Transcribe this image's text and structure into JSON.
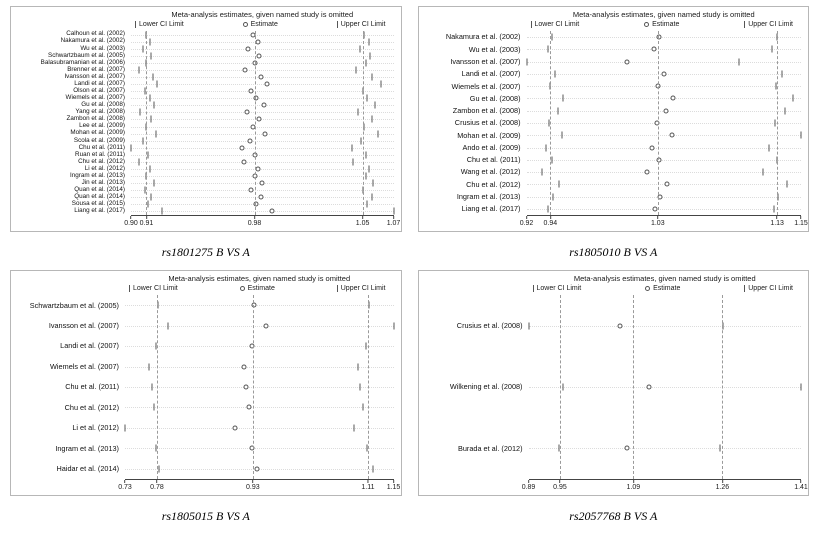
{
  "colors": {
    "marker": "#555555",
    "dashed_line": "#9a9a9a",
    "axis": "#444444",
    "row_dotted": "#dcdcdc",
    "border": "#b7b7b7",
    "text": "#1a1a1a"
  },
  "chart_data": [
    {
      "type": "scatter",
      "variant": "leave-one-out-sensitivity-forest",
      "caption": "rs1801275 B VS A",
      "title": "Meta-analysis estimates, given named study is omitted",
      "legend": [
        "Lower CI Limit",
        "Estimate",
        "Upper CI Limit"
      ],
      "xlim": [
        0.9,
        1.07
      ],
      "ticks": [
        0.9,
        0.91,
        0.98,
        1.05,
        1.07
      ],
      "tick_labels": [
        "0.90",
        "0.91",
        "0.98",
        "1.05",
        "1.07"
      ],
      "pooled_lines": [
        0.91,
        0.98,
        1.05
      ],
      "studies": [
        {
          "name": "Calhoun et al. (2002)",
          "lower": 0.91,
          "estimate": 0.979,
          "upper": 1.051
        },
        {
          "name": "Nakamura et al. (2002)",
          "lower": 0.912,
          "estimate": 0.982,
          "upper": 1.054
        },
        {
          "name": "Wu et al. (2003)",
          "lower": 0.908,
          "estimate": 0.976,
          "upper": 1.048
        },
        {
          "name": "Schwartzbaum et al. (2005)",
          "lower": 0.913,
          "estimate": 0.983,
          "upper": 1.055
        },
        {
          "name": "Balasubramanian et al. (2006)",
          "lower": 0.91,
          "estimate": 0.98,
          "upper": 1.052
        },
        {
          "name": "Brenner et al. (2007)",
          "lower": 0.905,
          "estimate": 0.974,
          "upper": 1.046
        },
        {
          "name": "Ivansson et al. (2007)",
          "lower": 0.914,
          "estimate": 0.984,
          "upper": 1.056
        },
        {
          "name": "Landi et al. (2007)",
          "lower": 0.917,
          "estimate": 0.988,
          "upper": 1.062
        },
        {
          "name": "Olson et al. (2007)",
          "lower": 0.909,
          "estimate": 0.978,
          "upper": 1.05
        },
        {
          "name": "Wiemels et al. (2007)",
          "lower": 0.912,
          "estimate": 0.981,
          "upper": 1.053
        },
        {
          "name": "Gu et al. (2008)",
          "lower": 0.915,
          "estimate": 0.986,
          "upper": 1.058
        },
        {
          "name": "Yang et al. (2008)",
          "lower": 0.906,
          "estimate": 0.975,
          "upper": 1.047
        },
        {
          "name": "Zambon et al. (2008)",
          "lower": 0.913,
          "estimate": 0.983,
          "upper": 1.056
        },
        {
          "name": "Lee et al. (2009)",
          "lower": 0.91,
          "estimate": 0.979,
          "upper": 1.051
        },
        {
          "name": "Mohan et al. (2009)",
          "lower": 0.916,
          "estimate": 0.987,
          "upper": 1.06
        },
        {
          "name": "Scola et al. (2009)",
          "lower": 0.908,
          "estimate": 0.977,
          "upper": 1.049
        },
        {
          "name": "Chu et al. (2011)",
          "lower": 0.9,
          "estimate": 0.972,
          "upper": 1.043
        },
        {
          "name": "Ruan et al. (2011)",
          "lower": 0.911,
          "estimate": 0.98,
          "upper": 1.052
        },
        {
          "name": "Chu et al. (2012)",
          "lower": 0.905,
          "estimate": 0.973,
          "upper": 1.044
        },
        {
          "name": "Li et al. (2012)",
          "lower": 0.912,
          "estimate": 0.982,
          "upper": 1.054
        },
        {
          "name": "Ingram et al. (2013)",
          "lower": 0.91,
          "estimate": 0.98,
          "upper": 1.052
        },
        {
          "name": "Jin et al. (2013)",
          "lower": 0.915,
          "estimate": 0.985,
          "upper": 1.057
        },
        {
          "name": "Quan et al. (2014)",
          "lower": 0.909,
          "estimate": 0.978,
          "upper": 1.05
        },
        {
          "name": "Quan et al. (2014)",
          "lower": 0.913,
          "estimate": 0.984,
          "upper": 1.056
        },
        {
          "name": "Sousa et al. (2015)",
          "lower": 0.911,
          "estimate": 0.981,
          "upper": 1.053
        },
        {
          "name": "Liang  et al. (2017)",
          "lower": 0.92,
          "estimate": 0.991,
          "upper": 1.07
        }
      ]
    },
    {
      "type": "scatter",
      "variant": "leave-one-out-sensitivity-forest",
      "caption": "rs1805010 B VS A",
      "title": "Meta-analysis estimates, given named study is omitted",
      "legend": [
        "Lower CI Limit",
        "Estimate",
        "Upper CI Limit"
      ],
      "xlim": [
        0.92,
        1.15
      ],
      "ticks": [
        0.92,
        0.94,
        1.03,
        1.13,
        1.15
      ],
      "tick_labels": [
        "0.92",
        "0.94",
        "1.03",
        "1.13",
        "1.15"
      ],
      "pooled_lines": [
        0.94,
        1.03,
        1.13
      ],
      "studies": [
        {
          "name": "Nakamura et al. (2002)",
          "lower": 0.941,
          "estimate": 1.031,
          "upper": 1.13
        },
        {
          "name": "Wu et al. (2003)",
          "lower": 0.938,
          "estimate": 1.027,
          "upper": 1.126
        },
        {
          "name": "Ivansson et al. (2007)",
          "lower": 0.92,
          "estimate": 1.004,
          "upper": 1.098
        },
        {
          "name": "Landi et al. (2007)",
          "lower": 0.944,
          "estimate": 1.035,
          "upper": 1.134
        },
        {
          "name": "Wiemels  et al. (2007)",
          "lower": 0.94,
          "estimate": 1.03,
          "upper": 1.129
        },
        {
          "name": "Gu et al. (2008)",
          "lower": 0.951,
          "estimate": 1.043,
          "upper": 1.143
        },
        {
          "name": "Zambon  et al. (2008)",
          "lower": 0.946,
          "estimate": 1.037,
          "upper": 1.137
        },
        {
          "name": "Crusius  et al. (2008)",
          "lower": 0.939,
          "estimate": 1.029,
          "upper": 1.128
        },
        {
          "name": "Mohan  et al. (2009)",
          "lower": 0.95,
          "estimate": 1.042,
          "upper": 1.15
        },
        {
          "name": "Ando et al. (2009)",
          "lower": 0.936,
          "estimate": 1.025,
          "upper": 1.123
        },
        {
          "name": "Chu et al. (2011)",
          "lower": 0.941,
          "estimate": 1.031,
          "upper": 1.13
        },
        {
          "name": "Wang et al. (2012)",
          "lower": 0.933,
          "estimate": 1.021,
          "upper": 1.118
        },
        {
          "name": "Chu et al. (2012)",
          "lower": 0.947,
          "estimate": 1.038,
          "upper": 1.138
        },
        {
          "name": "Ingram et al. (2013)",
          "lower": 0.942,
          "estimate": 1.032,
          "upper": 1.131
        },
        {
          "name": "Liang  et al. (2017)",
          "lower": 0.938,
          "estimate": 1.028,
          "upper": 1.127
        }
      ]
    },
    {
      "type": "scatter",
      "variant": "leave-one-out-sensitivity-forest",
      "caption": "rs1805015 B VS A",
      "title": "Meta-analysis estimates, given named study is omitted",
      "legend": [
        "Lower CI Limit",
        "Estimate",
        "Upper CI Limit"
      ],
      "xlim": [
        0.73,
        1.15
      ],
      "ticks": [
        0.73,
        0.78,
        0.93,
        1.11,
        1.15
      ],
      "tick_labels": [
        "0.73",
        "0.78",
        "0.93",
        "1.11",
        "1.15"
      ],
      "pooled_lines": [
        0.78,
        0.93,
        1.11
      ],
      "studies": [
        {
          "name": "Schwartzbaum et al. (2005)",
          "lower": 0.781,
          "estimate": 0.932,
          "upper": 1.112
        },
        {
          "name": "Ivansson et al. (2007)",
          "lower": 0.798,
          "estimate": 0.95,
          "upper": 1.15
        },
        {
          "name": "Landi et al. (2007)",
          "lower": 0.778,
          "estimate": 0.928,
          "upper": 1.107
        },
        {
          "name": "Wiemels et al. (2007)",
          "lower": 0.768,
          "estimate": 0.916,
          "upper": 1.094
        },
        {
          "name": "Chu et al. (2011)",
          "lower": 0.772,
          "estimate": 0.92,
          "upper": 1.098
        },
        {
          "name": "Chu et al. (2012)",
          "lower": 0.775,
          "estimate": 0.924,
          "upper": 1.102
        },
        {
          "name": "Li et al. (2012)",
          "lower": 0.73,
          "estimate": 0.902,
          "upper": 1.088
        },
        {
          "name": "Ingram et al. (2013)",
          "lower": 0.779,
          "estimate": 0.929,
          "upper": 1.108
        },
        {
          "name": "Haidar et al. (2014)",
          "lower": 0.783,
          "estimate": 0.936,
          "upper": 1.118
        }
      ]
    },
    {
      "type": "scatter",
      "variant": "leave-one-out-sensitivity-forest",
      "caption": "rs2057768 B VS A",
      "title": "Meta-analysis estimates, given named study is omitted",
      "legend": [
        "Lower CI Limit",
        "Estimate",
        "Upper CI Limit"
      ],
      "xlim": [
        0.89,
        1.41
      ],
      "ticks": [
        0.89,
        0.95,
        1.09,
        1.26,
        1.41
      ],
      "tick_labels": [
        "0.89",
        "0.95",
        "1.09",
        "1.26",
        "1.41"
      ],
      "pooled_lines": [
        0.95,
        1.09,
        1.26
      ],
      "studies": [
        {
          "name": "Crusius  et al. (2008)",
          "lower": 0.89,
          "estimate": 1.065,
          "upper": 1.262
        },
        {
          "name": "Wilkening et al. (2008)",
          "lower": 0.955,
          "estimate": 1.12,
          "upper": 1.41
        },
        {
          "name": "Burada et al. (2012)",
          "lower": 0.948,
          "estimate": 1.078,
          "upper": 1.255
        }
      ]
    }
  ]
}
